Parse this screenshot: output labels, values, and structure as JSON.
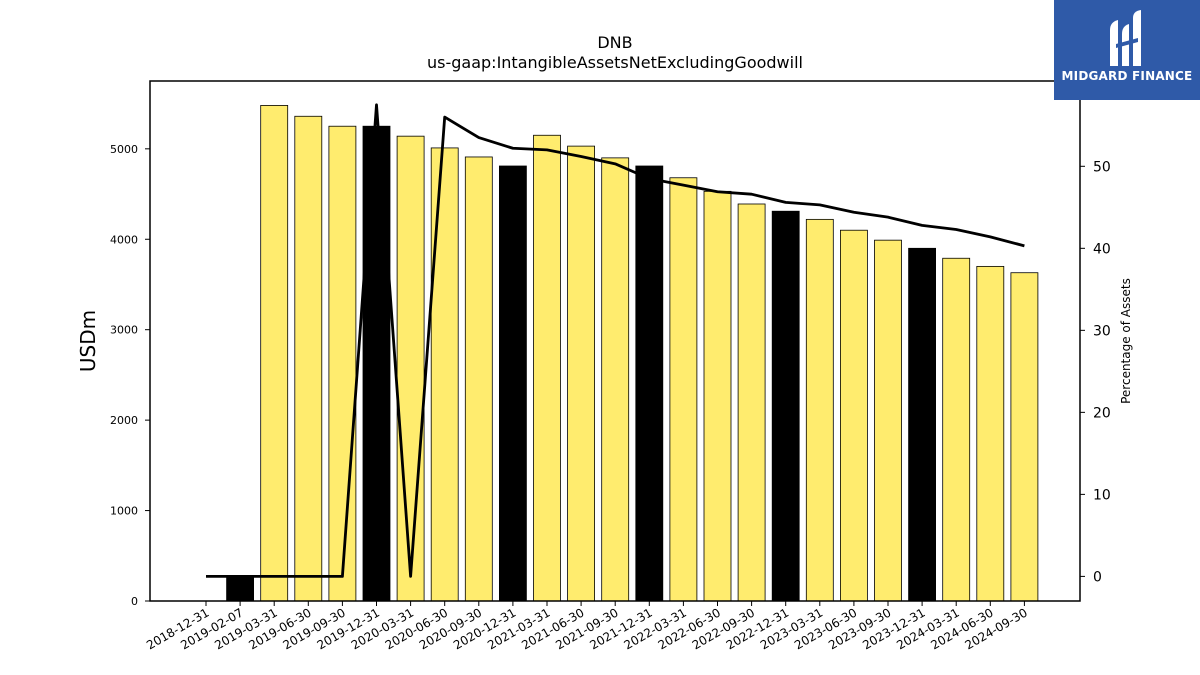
{
  "chart_data": {
    "type": "bar",
    "title": "DNB",
    "subtitle": "us-gaap:IntangibleAssetsNetExcludingGoodwill",
    "ylabel": "USDm",
    "y2label": "Percentage of Assets",
    "ylim": [
      0,
      5750
    ],
    "y2lim": [
      -3,
      60.4
    ],
    "yticks": [
      0,
      1000,
      2000,
      3000,
      4000,
      5000
    ],
    "y2ticks": [
      0,
      10,
      20,
      30,
      40,
      50
    ],
    "categories": [
      "2018-12-31",
      "2019-02-07",
      "2019-03-31",
      "2019-06-30",
      "2019-09-30",
      "2019-12-31",
      "2020-03-31",
      "2020-06-30",
      "2020-09-30",
      "2020-12-31",
      "2021-03-31",
      "2021-06-30",
      "2021-09-30",
      "2021-12-31",
      "2022-03-31",
      "2022-06-30",
      "2022-09-30",
      "2022-12-31",
      "2023-03-31",
      "2023-06-30",
      "2023-09-30",
      "2023-12-31",
      "2024-03-31",
      "2024-06-30",
      "2024-09-30"
    ],
    "series": [
      {
        "values": [
          null,
          280,
          5480,
          5360,
          5250,
          5250,
          5140,
          5010,
          4910,
          4810,
          5150,
          5030,
          4900,
          4810,
          4680,
          4530,
          4390,
          4310,
          4220,
          4100,
          3990,
          3900,
          3790,
          3700,
          3630
        ],
        "colors": [
          "#ffec6e",
          "#000000",
          "#ffec6e",
          "#ffec6e",
          "#ffec6e",
          "#000000",
          "#ffec6e",
          "#ffec6e",
          "#ffec6e",
          "#000000",
          "#ffec6e",
          "#ffec6e",
          "#ffec6e",
          "#000000",
          "#ffec6e",
          "#ffec6e",
          "#ffec6e",
          "#000000",
          "#ffec6e",
          "#ffec6e",
          "#ffec6e",
          "#000000",
          "#ffec6e",
          "#ffec6e",
          "#ffec6e"
        ]
      },
      {
        "axis": "secondary",
        "type": "line",
        "values": [
          0,
          0,
          0,
          0,
          0,
          57.5,
          0,
          56,
          53.5,
          52.2,
          52,
          51.2,
          50.3,
          48.5,
          47.7,
          46.9,
          46.6,
          45.6,
          45.3,
          44.4,
          43.8,
          42.8,
          42.3,
          41.4,
          40.3
        ]
      }
    ],
    "grid": false,
    "legend": "none"
  },
  "logo": {
    "text": "MIDGARD FINANCE",
    "icon": "midgard-logo-icon"
  },
  "colors": {
    "bar_default": "#ffec6e",
    "bar_highlight": "#000000",
    "line": "#000000",
    "logo_bg": "#2f5aa8"
  }
}
